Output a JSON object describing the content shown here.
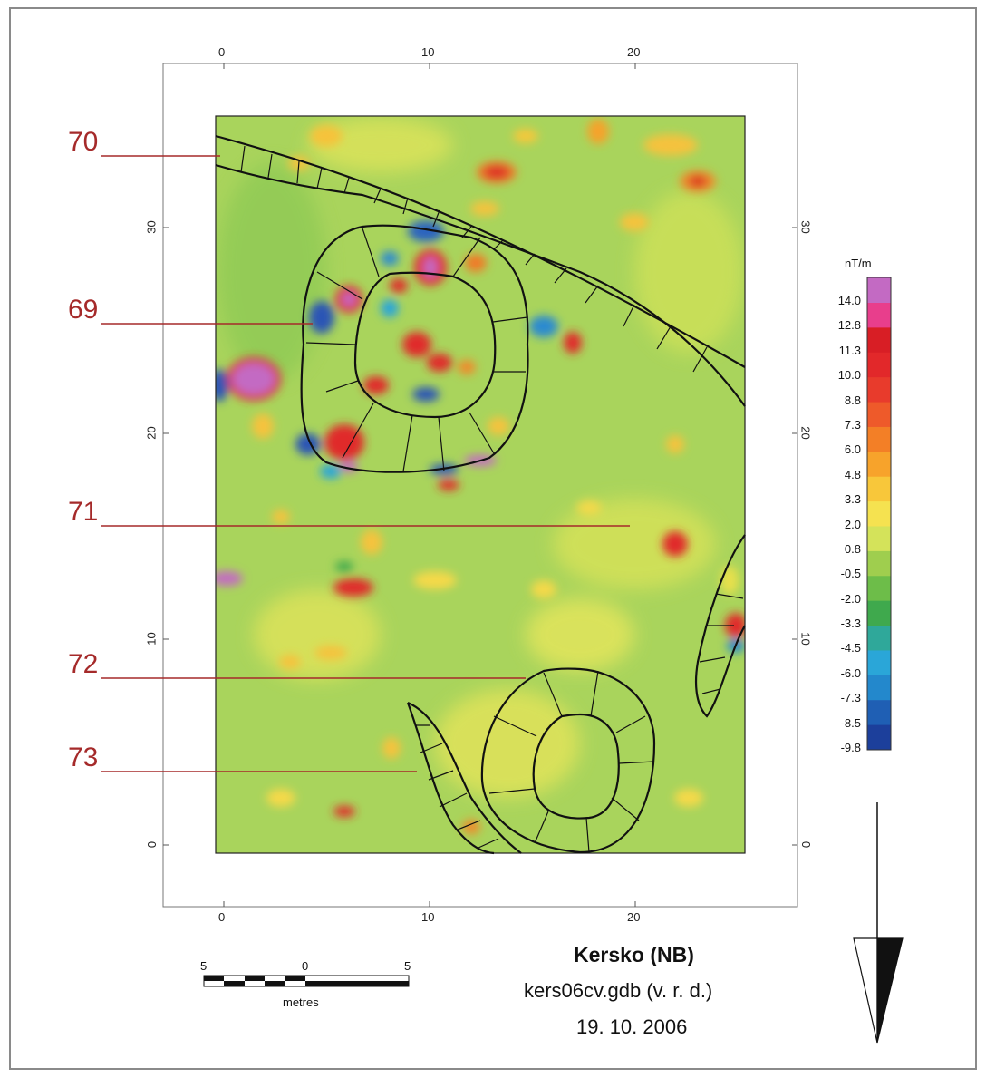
{
  "map": {
    "title": "Kersko (NB)",
    "file": "kers06cv.gdb (v. r. d.)",
    "date": "19. 10. 2006",
    "x_ticks": [
      "0",
      "10",
      "20"
    ],
    "y_ticks": [
      "0",
      "10",
      "20",
      "30"
    ],
    "x_range": [
      -3,
      28
    ],
    "y_range": [
      -3,
      37
    ]
  },
  "profile_labels": [
    "70",
    "69",
    "71",
    "72",
    "73"
  ],
  "legend": {
    "unit": "nT/m",
    "labels": [
      "14.0",
      "12.8",
      "11.3",
      "10.0",
      "8.8",
      "7.3",
      "6.0",
      "4.8",
      "3.3",
      "2.0",
      "0.8",
      "-0.5",
      "-2.0",
      "-3.3",
      "-4.5",
      "-6.0",
      "-7.3",
      "-8.5",
      "-9.8"
    ],
    "colors": [
      "#c36ac3",
      "#e83e8c",
      "#d81e25",
      "#e2282a",
      "#e83b2c",
      "#ee5a2a",
      "#f37f26",
      "#f7a32b",
      "#f8c73a",
      "#f5e250",
      "#d4e35a",
      "#9fce4e",
      "#6dbd49",
      "#3fa94d",
      "#2fa89a",
      "#2aa6d8",
      "#2388cc",
      "#1f5fb4",
      "#1c3f9b"
    ]
  },
  "scale_bar": {
    "labels": [
      "5",
      "0",
      "5"
    ],
    "unit": "metres"
  },
  "colors": {
    "background_field": "#a8d35a",
    "profile_line": "#a52a2a",
    "outline": "#111111"
  }
}
